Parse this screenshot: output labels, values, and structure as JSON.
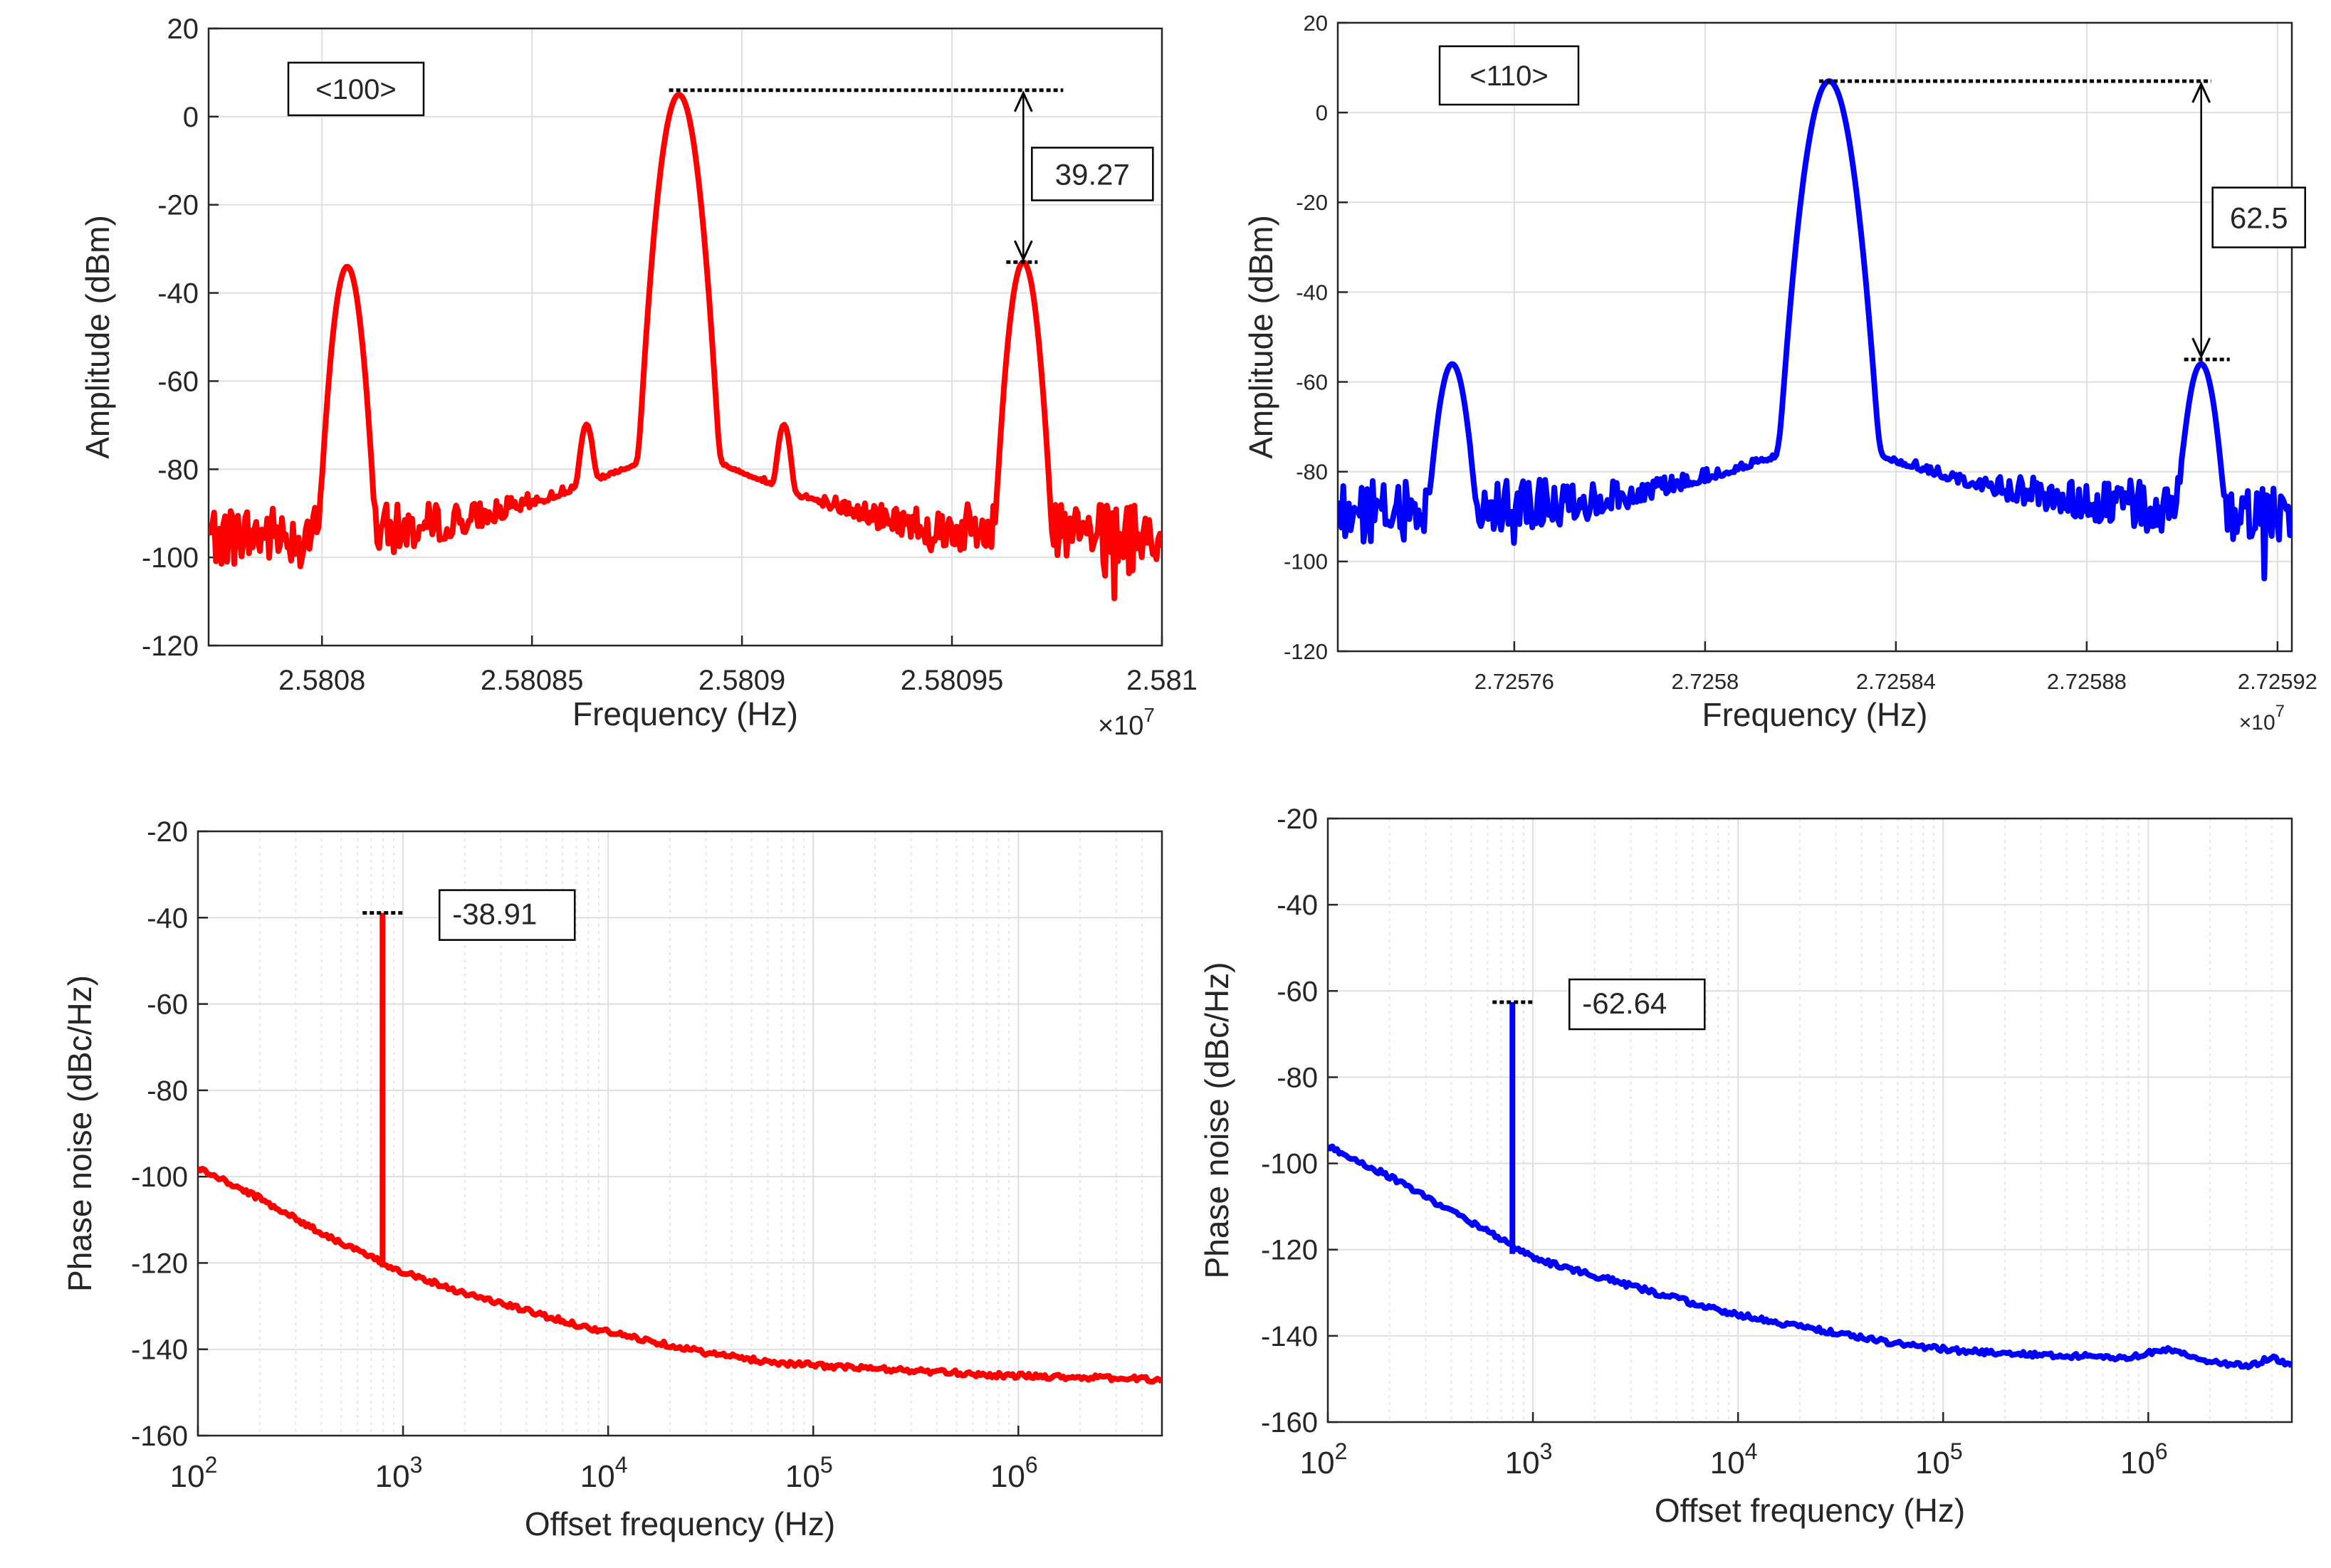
{
  "colors": {
    "red_series": "#ff0000",
    "blue_series": "#0000ff",
    "grid": "#dfdfdf",
    "axis": "#262626",
    "minor_grid": "#e6e6e6"
  },
  "chart_data": [
    {
      "id": "p100",
      "type": "line",
      "scale": "linear",
      "color": "#ff0000",
      "xlabel": "Frequency (Hz)",
      "ylabel": "Amplitude (dBm)",
      "exponent_label": "×10",
      "exponent_power": "7",
      "xlim": [
        2.580773,
        2.581
      ],
      "ylim": [
        -120,
        20
      ],
      "xticks": [
        2.5808,
        2.58085,
        2.5809,
        2.58095,
        2.581
      ],
      "xtick_labels": [
        "2.5808",
        "2.58085",
        "2.5809",
        "2.58095",
        "2.581"
      ],
      "yticks": [
        20,
        0,
        -20,
        -40,
        -60,
        -80,
        -100,
        -120
      ],
      "ytick_labels": [
        "20",
        "0",
        "-20",
        "-40",
        "-60",
        "-80",
        "-100",
        "-120"
      ],
      "noise_floor_dBm": -95,
      "peaks": [
        {
          "x": 2.580806,
          "y": -34,
          "width": 1.8e-06
        },
        {
          "x": 2.580863,
          "y": -70,
          "width": 1.2e-06
        },
        {
          "x": 2.580885,
          "y": 5,
          "width": 2.2e-06
        },
        {
          "x": 2.58091,
          "y": -70,
          "width": 1.2e-06
        },
        {
          "x": 2.580967,
          "y": -33,
          "width": 1.8e-06
        }
      ],
      "legend_box": "<100>",
      "annotation": {
        "label": "39.27",
        "top_dBm": 6,
        "bottom_dBm": -33
      }
    },
    {
      "id": "p110",
      "type": "line",
      "scale": "linear",
      "color": "#0000ff",
      "xlabel": "Frequency (Hz)",
      "ylabel": "Amplitude (dBm)",
      "exponent_label": "×10",
      "exponent_power": "7",
      "xlim": [
        2.725723,
        2.725923
      ],
      "ylim": [
        -120,
        20
      ],
      "xticks": [
        2.72576,
        2.7258,
        2.72584,
        2.72588,
        2.72592
      ],
      "xtick_labels": [
        "2.72576",
        "2.7258",
        "2.72584",
        "2.72588",
        "2.72592"
      ],
      "yticks": [
        20,
        0,
        -20,
        -40,
        -60,
        -80,
        -100,
        -120
      ],
      "ytick_labels": [
        "20",
        "0",
        "-20",
        "-40",
        "-60",
        "-80",
        "-100",
        "-120"
      ],
      "noise_floor_dBm": -89,
      "peaks": [
        {
          "x": 2.725747,
          "y": -56,
          "width": 1.8e-06
        },
        {
          "x": 2.725826,
          "y": 7,
          "width": 2.4e-06
        },
        {
          "x": 2.725904,
          "y": -56,
          "width": 1.8e-06
        }
      ],
      "legend_box": "<110>",
      "annotation": {
        "label": "62.5",
        "top_dBm": 7,
        "bottom_dBm": -55
      }
    },
    {
      "id": "pn100",
      "type": "line",
      "scale": "log-x",
      "color": "#ff0000",
      "xlabel": "Offset frequency (Hz)",
      "ylabel": "Phase noise (dBc/Hz)",
      "xlim_log10": [
        2,
        6.7
      ],
      "ylim": [
        -160,
        -20
      ],
      "xtick_exps": [
        "2",
        "3",
        "4",
        "5",
        "6"
      ],
      "xtick_base": "10",
      "yticks": [
        -20,
        -40,
        -60,
        -80,
        -100,
        -120,
        -140,
        -160
      ],
      "ytick_labels": [
        "-20",
        "-40",
        "-60",
        "-80",
        "-100",
        "-120",
        "-140",
        "-160"
      ],
      "curve": [
        [
          2,
          -98
        ],
        [
          2.3,
          -105
        ],
        [
          2.6,
          -113
        ],
        [
          2.9,
          -120
        ],
        [
          3.0,
          -122
        ],
        [
          3.3,
          -127
        ],
        [
          3.6,
          -131
        ],
        [
          3.9,
          -135
        ],
        [
          4.2,
          -138
        ],
        [
          4.5,
          -141
        ],
        [
          4.8,
          -143
        ],
        [
          5.1,
          -144
        ],
        [
          5.5,
          -145
        ],
        [
          5.9,
          -146
        ],
        [
          6.3,
          -146.5
        ],
        [
          6.7,
          -147
        ]
      ],
      "spur": {
        "log10_x": 2.9,
        "top": -38.9,
        "base": -121
      },
      "annotation": {
        "label": "-38.91",
        "value": -38.91
      }
    },
    {
      "id": "pn110",
      "type": "line",
      "scale": "log-x",
      "color": "#0000ff",
      "xlabel": "Offset frequency (Hz)",
      "ylabel": "Phase noise (dBc/Hz)",
      "xlim_log10": [
        2,
        6.7
      ],
      "ylim": [
        -160,
        -20
      ],
      "xtick_exps": [
        "2",
        "3",
        "4",
        "5",
        "6"
      ],
      "xtick_base": "10",
      "yticks": [
        -20,
        -40,
        -60,
        -80,
        -100,
        -120,
        -140,
        -160
      ],
      "ytick_labels": [
        "-20",
        "-40",
        "-60",
        "-80",
        "-100",
        "-120",
        "-140",
        "-160"
      ],
      "curve": [
        [
          2,
          -96
        ],
        [
          2.3,
          -103
        ],
        [
          2.6,
          -111
        ],
        [
          2.9,
          -119
        ],
        [
          3.0,
          -122
        ],
        [
          3.3,
          -126
        ],
        [
          3.6,
          -130
        ],
        [
          3.9,
          -134
        ],
        [
          4.2,
          -137
        ],
        [
          4.5,
          -139.5
        ],
        [
          4.8,
          -142
        ],
        [
          5.1,
          -143.5
        ],
        [
          5.5,
          -144.5
        ],
        [
          5.9,
          -145
        ],
        [
          6.1,
          -143
        ],
        [
          6.3,
          -146
        ],
        [
          6.5,
          -147
        ],
        [
          6.6,
          -145
        ],
        [
          6.7,
          -147
        ]
      ],
      "spur": {
        "log10_x": 2.9,
        "top": -62.6,
        "base": -121
      },
      "annotation": {
        "label": "-62.64",
        "value": -62.64
      }
    }
  ]
}
